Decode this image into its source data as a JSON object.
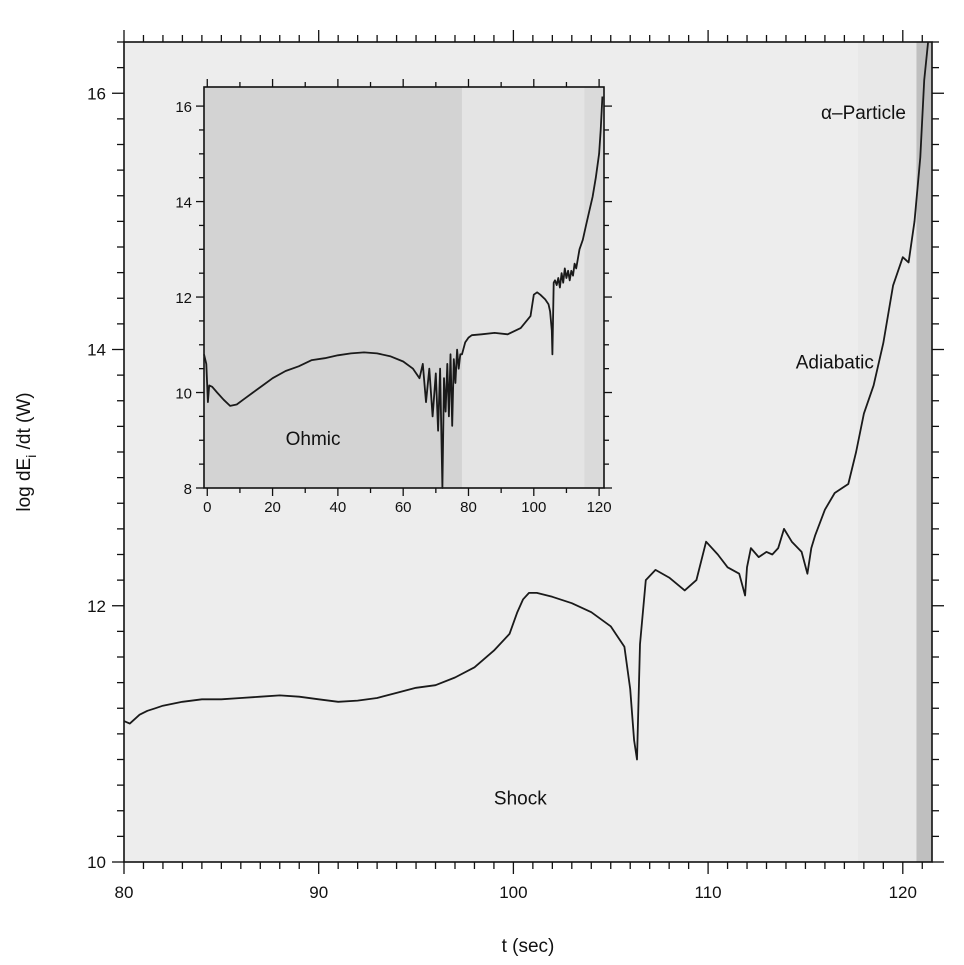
{
  "chart_data": [
    {
      "id": "main",
      "type": "line",
      "xlabel": "t (sec)",
      "ylabel": "log dE",
      "ylabel_subscript": "i",
      "ylabel_suffix": " /dt (W)",
      "xlim": [
        80,
        121.5
      ],
      "ylim": [
        10,
        16.4
      ],
      "xticks": [
        80,
        90,
        100,
        110,
        120
      ],
      "yticks": [
        10,
        12,
        14,
        16
      ],
      "regions": [
        {
          "label": "Shock",
          "from": 80,
          "to": 117.7,
          "color": "#ededed"
        },
        {
          "label": "Adiabatic",
          "from": 117.7,
          "to": 120.7,
          "color": "#e8e8e8"
        },
        {
          "label": "α–Particle",
          "from": 120.7,
          "to": 121.5,
          "color": "#bfbfbf"
        }
      ],
      "region_labels": [
        {
          "text": "Shock",
          "x": 99,
          "y": 10.45
        },
        {
          "text": "Adiabatic",
          "x": 114.5,
          "y": 13.85
        },
        {
          "text": "α–Particle",
          "x": 115.8,
          "y": 15.8
        }
      ],
      "series": [
        {
          "x": [
            80,
            80.3,
            80.8,
            81.2,
            81.6,
            82,
            83,
            84,
            85,
            86,
            87,
            88,
            89,
            90,
            91,
            92,
            93,
            94,
            95,
            96,
            97,
            98,
            99,
            99.8,
            100.2,
            100.5,
            100.8,
            101.2,
            102,
            103,
            104,
            105,
            105.7,
            106,
            106.2,
            106.35,
            106.5,
            106.8,
            107.3,
            108,
            108.8,
            109.4,
            109.9,
            110.5,
            111,
            111.6,
            111.9,
            112,
            112.2,
            112.6,
            113,
            113.3,
            113.6,
            113.9,
            114.3,
            114.8,
            115.1,
            115.3,
            115.5,
            116,
            116.5,
            116.9,
            117.2,
            117.6,
            118,
            118.5,
            119,
            119.5,
            120,
            120.3,
            120.6,
            120.9,
            121.1,
            121.3
          ],
          "y": [
            11.1,
            11.08,
            11.15,
            11.18,
            11.2,
            11.22,
            11.25,
            11.27,
            11.27,
            11.28,
            11.29,
            11.3,
            11.29,
            11.27,
            11.25,
            11.26,
            11.28,
            11.32,
            11.36,
            11.38,
            11.44,
            11.52,
            11.65,
            11.78,
            11.95,
            12.05,
            12.1,
            12.1,
            12.07,
            12.02,
            11.95,
            11.84,
            11.68,
            11.35,
            10.95,
            10.8,
            11.7,
            12.2,
            12.28,
            12.22,
            12.12,
            12.2,
            12.5,
            12.4,
            12.3,
            12.25,
            12.08,
            12.3,
            12.45,
            12.38,
            12.42,
            12.4,
            12.45,
            12.6,
            12.5,
            12.42,
            12.25,
            12.45,
            12.55,
            12.75,
            12.88,
            12.92,
            12.95,
            13.2,
            13.5,
            13.72,
            14.05,
            14.5,
            14.72,
            14.68,
            15.0,
            15.5,
            16.1,
            16.45
          ]
        }
      ]
    },
    {
      "id": "inset",
      "type": "line",
      "xlim": [
        -1,
        121.5
      ],
      "ylim": [
        8,
        16.4
      ],
      "xticks": [
        0,
        20,
        40,
        60,
        80,
        100,
        120
      ],
      "yticks": [
        8,
        10,
        12,
        14,
        16
      ],
      "regions": [
        {
          "label": "Ohmic",
          "from": -1,
          "to": 78,
          "color": "#d3d3d3"
        },
        {
          "label": "Shock",
          "from": 78,
          "to": 115.5,
          "color": "#e4e4e4"
        },
        {
          "label": "Adiabatic",
          "from": 115.5,
          "to": 121.5,
          "color": "#dadada"
        }
      ],
      "region_labels": [
        {
          "text": "Ohmic",
          "x": 24,
          "y": 8.9
        }
      ],
      "series": [
        {
          "x": [
            -1,
            -0.3,
            0.2,
            0.6,
            1.5,
            3,
            5,
            7,
            9,
            11,
            14,
            17,
            20,
            24,
            28,
            32,
            36,
            40,
            44,
            48,
            52,
            56,
            60,
            63,
            65,
            66,
            67,
            68,
            69,
            70,
            70.7,
            71.3,
            72,
            72.5,
            73,
            73.5,
            74,
            74.5,
            75,
            75.5,
            76,
            76.5,
            77,
            77.5,
            78,
            79,
            80,
            81,
            84,
            88,
            92,
            96,
            99,
            100,
            101,
            102,
            103.5,
            104.5,
            105,
            105.5,
            105.7,
            106.1,
            106.5,
            107,
            107.5,
            108,
            108.5,
            109,
            109.5,
            110,
            110.5,
            111,
            111.5,
            112,
            112.5,
            113,
            114,
            115,
            116,
            117,
            118,
            119,
            120,
            120.5,
            121
          ],
          "y": [
            10.8,
            10.6,
            9.8,
            10.15,
            10.12,
            10.0,
            9.85,
            9.72,
            9.75,
            9.85,
            10.0,
            10.15,
            10.3,
            10.45,
            10.55,
            10.68,
            10.72,
            10.78,
            10.82,
            10.84,
            10.82,
            10.76,
            10.65,
            10.5,
            10.3,
            10.6,
            9.8,
            10.5,
            9.5,
            10.4,
            9.2,
            10.5,
            8.0,
            10.3,
            9.6,
            10.6,
            9.5,
            10.8,
            9.3,
            10.7,
            10.2,
            10.9,
            10.5,
            10.8,
            10.8,
            11.05,
            11.15,
            11.2,
            11.22,
            11.25,
            11.22,
            11.35,
            11.6,
            12.05,
            12.1,
            12.05,
            11.95,
            11.85,
            11.7,
            11.3,
            10.8,
            12.3,
            12.35,
            12.25,
            12.4,
            12.2,
            12.5,
            12.3,
            12.6,
            12.4,
            12.55,
            12.35,
            12.55,
            12.45,
            12.7,
            12.6,
            13.0,
            13.2,
            13.5,
            13.8,
            14.1,
            14.5,
            15.0,
            15.5,
            16.2
          ]
        }
      ]
    }
  ]
}
